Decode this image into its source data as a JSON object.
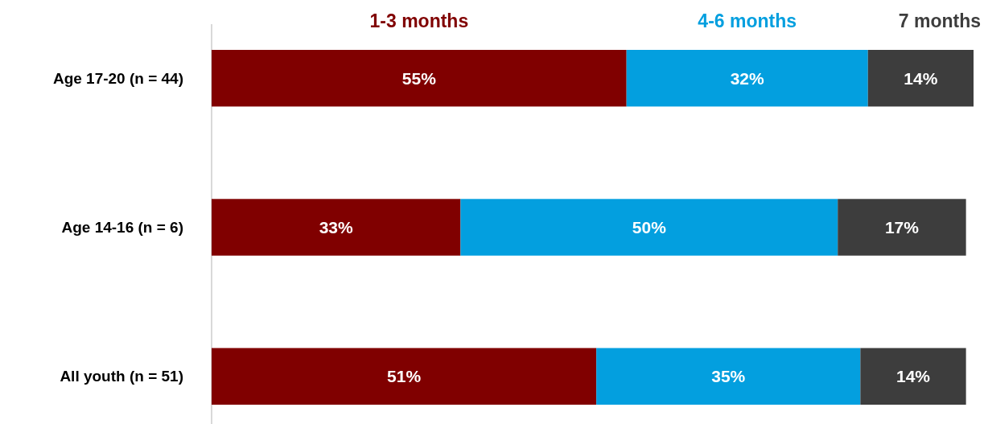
{
  "chart_data": {
    "type": "bar",
    "orientation": "horizontal",
    "stacked": true,
    "categories": [
      "Age 17-20 (n = 44)",
      "Age 14-16 (n = 6)",
      "All youth (n = 51)"
    ],
    "series": [
      {
        "name": "1-3 months",
        "color": "#800000",
        "values": [
          55,
          33,
          51
        ],
        "value_labels": [
          "55%",
          "33%",
          "51%"
        ]
      },
      {
        "name": "4-6 months",
        "color": "#039fdf",
        "values": [
          32,
          50,
          35
        ],
        "value_labels": [
          "32%",
          "50%",
          "35%"
        ]
      },
      {
        "name": "7 months",
        "color": "#3d3d3d",
        "values": [
          14,
          17,
          14
        ],
        "value_labels": [
          "14%",
          "17%",
          "14%"
        ]
      }
    ],
    "xlim": [
      0,
      101
    ],
    "tick_labels": "y",
    "legend": "top"
  }
}
